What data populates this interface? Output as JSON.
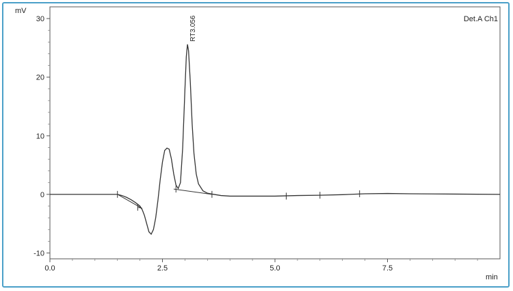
{
  "chart_data": {
    "type": "line",
    "title": "",
    "xlabel": "min",
    "ylabel": "mV",
    "detector_label": "Det.A Ch1",
    "xlim": [
      0,
      10
    ],
    "ylim": [
      -11,
      32
    ],
    "x_ticks": [
      0.0,
      2.5,
      5.0,
      7.5
    ],
    "x_tick_labels": [
      "0.0",
      "2.5",
      "5.0",
      "7.5"
    ],
    "y_ticks": [
      -10,
      0,
      10,
      20,
      30
    ],
    "y_tick_labels": [
      "-10",
      "0",
      "10",
      "20",
      "30"
    ],
    "grid": false,
    "series": [
      {
        "color": "#333333",
        "x": [
          0.0,
          1.0,
          1.5,
          1.6,
          1.7,
          1.8,
          1.9,
          2.0,
          2.05,
          2.1,
          2.15,
          2.2,
          2.25,
          2.3,
          2.35,
          2.4,
          2.45,
          2.5,
          2.55,
          2.6,
          2.65,
          2.7,
          2.75,
          2.8,
          2.85,
          2.9,
          2.95,
          3.0,
          3.03,
          3.056,
          3.08,
          3.12,
          3.16,
          3.2,
          3.25,
          3.3,
          3.4,
          3.5,
          3.6,
          3.8,
          4.0,
          4.5,
          5.0,
          5.5,
          6.0,
          6.5,
          7.0,
          7.5,
          8.0,
          9.0,
          10.0
        ],
        "y": [
          0.0,
          0.0,
          0.0,
          -0.2,
          -0.5,
          -0.9,
          -1.4,
          -2.0,
          -2.6,
          -3.6,
          -5.0,
          -6.4,
          -6.8,
          -6.0,
          -4.0,
          -1.0,
          2.5,
          5.5,
          7.5,
          7.9,
          7.7,
          6.0,
          3.5,
          1.6,
          1.0,
          2.0,
          8.0,
          18.0,
          23.5,
          25.6,
          24.5,
          19.0,
          12.0,
          7.0,
          3.5,
          1.8,
          0.6,
          0.2,
          0.05,
          -0.2,
          -0.3,
          -0.3,
          -0.3,
          -0.2,
          -0.15,
          -0.05,
          0.1,
          0.15,
          0.1,
          0.05,
          0.0
        ]
      }
    ],
    "baselines": [
      {
        "x": [
          1.5,
          2.05
        ],
        "y": [
          0.0,
          -2.4
        ]
      },
      {
        "x": [
          1.95,
          2.05
        ],
        "y": [
          -2.2,
          -2.4
        ]
      },
      {
        "x": [
          2.75,
          3.6
        ],
        "y": [
          0.9,
          0.0
        ]
      }
    ],
    "peak_marks": [
      {
        "x": 1.5,
        "y": 0.0
      },
      {
        "x": 1.95,
        "y": -2.2
      },
      {
        "x": 2.8,
        "y": 0.9
      },
      {
        "x": 3.6,
        "y": 0.0
      },
      {
        "x": 5.25,
        "y": -0.3
      },
      {
        "x": 6.0,
        "y": -0.15
      },
      {
        "x": 6.88,
        "y": 0.1
      }
    ],
    "annotations": [
      {
        "text": "RT3.056",
        "x": 3.056,
        "y": 25.6
      }
    ]
  }
}
